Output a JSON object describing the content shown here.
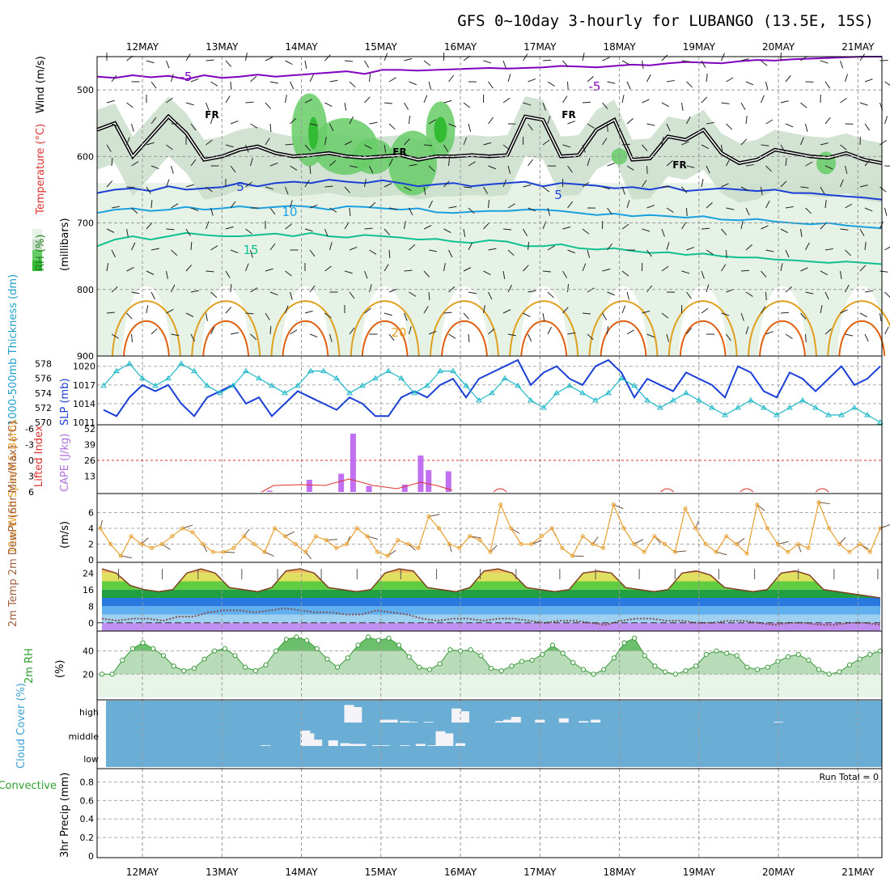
{
  "title": "GFS 0~10day 3-hourly for LUBANGO (13.5E, 15S)",
  "date_labels": [
    "12MAY",
    "13MAY",
    "14MAY",
    "15MAY",
    "16MAY",
    "17MAY",
    "18MAY",
    "19MAY",
    "20MAY",
    "21MAY"
  ],
  "colors": {
    "temp_purple": "#8000c0",
    "temp_blue": "#1a3fd6",
    "temp_lightblue": "#1aa0e0",
    "temp_teal": "#10c090",
    "temp_orange": "#e0a020",
    "temp_darkorange": "#e06010",
    "freezing": "#000000",
    "rh_light": "#e6f2e6",
    "rh_mid": "#c8dcc8",
    "rh_green": "#66cc66",
    "rh_bright": "#33bb33",
    "slp": "#1a3fd6",
    "thickness": "#20b8c8",
    "lifted": "#e03030",
    "cape": "#c070f0",
    "wind10": "#e8a030",
    "cloud_bg": "#6aaed6",
    "rh2m": "#7ac87a"
  },
  "panels": {
    "upper": {
      "ylabel_rh": "RH (%)",
      "ylabel_temp": "Temperature (°C)",
      "ylabel_wind": "Wind (m/s)",
      "ylabel_units": "(millibars)",
      "contour_labels": [
        "-5",
        "-5",
        "5",
        "5",
        "10",
        "15",
        "20",
        "FR",
        "FR",
        "FR",
        "FR"
      ]
    },
    "slp": {
      "ylabel_left": "1000-500mb Thickness (dm)",
      "ylabel_right": "SLP (mb)"
    },
    "cape": {
      "ylabel_left": "Lifted Index",
      "ylabel_right": "CAPE (J/kg)"
    },
    "wind10": {
      "ylabel": "10m Wind Speed & Barbs",
      "ylabel_units": "(m/s)"
    },
    "temp2m": {
      "ylabel": "2m Temp 2m DewPt (6hr Min/Max) (°C)"
    },
    "rh2m": {
      "ylabel": "2m RH",
      "ylabel_units": "(%)"
    },
    "cloud": {
      "ylabel": "Cloud Cover (%)",
      "levels": [
        "high",
        "middle",
        "low"
      ]
    },
    "precip": {
      "ylabel_left": "Total / Rain Convective",
      "ylabel_units": "3hr Precip (mm)",
      "run_total": "Run Total = 0"
    }
  },
  "chart_data": [
    {
      "type": "line",
      "title": "GFS 0~10day 3-hourly for LUBANGO (13.5E, 15S)",
      "ylabel": "Wind (m/s) / Temperature (°C) / RH (%) (millibars)",
      "yticks": [
        500,
        600,
        700,
        800,
        900
      ],
      "ylim": [
        450,
        900
      ],
      "inverted_y": true,
      "series": [
        {
          "name": "-5",
          "values": [
            480,
            482,
            478,
            481,
            479,
            484,
            478,
            482,
            480,
            477,
            480,
            478,
            476,
            474,
            472,
            476,
            470,
            470,
            471,
            470,
            469,
            468,
            467,
            468,
            467,
            466,
            464,
            465,
            466,
            464,
            462,
            463,
            460,
            458,
            459,
            460,
            457,
            455,
            456,
            454,
            453,
            452,
            451,
            450,
            450
          ]
        },
        {
          "name": "FR",
          "values": [
            560,
            550,
            600,
            570,
            540,
            565,
            605,
            600,
            590,
            585,
            595,
            600,
            598,
            595,
            600,
            602,
            600,
            598,
            605,
            600,
            600,
            598,
            600,
            598,
            540,
            545,
            600,
            598,
            560,
            545,
            605,
            603,
            570,
            575,
            560,
            595,
            610,
            605,
            590,
            595,
            600,
            602,
            595,
            605,
            610
          ]
        },
        {
          "name": "5",
          "values": [
            655,
            650,
            648,
            652,
            645,
            650,
            648,
            646,
            640,
            645,
            640,
            638,
            640,
            635,
            638,
            640,
            636,
            640,
            645,
            642,
            640,
            645,
            642,
            640,
            638,
            645,
            640,
            642,
            644,
            648,
            646,
            650,
            645,
            652,
            650,
            648,
            650,
            652,
            650,
            655,
            655,
            658,
            660,
            662,
            665
          ]
        },
        {
          "name": "10",
          "values": [
            685,
            680,
            678,
            682,
            680,
            676,
            680,
            678,
            675,
            678,
            676,
            674,
            676,
            680,
            675,
            676,
            678,
            680,
            678,
            684,
            685,
            683,
            682,
            682,
            680,
            680,
            682,
            685,
            688,
            686,
            690,
            688,
            690,
            692,
            690,
            695,
            696,
            694,
            698,
            700,
            702,
            700,
            704,
            706,
            708
          ]
        },
        {
          "name": "15",
          "values": [
            735,
            725,
            720,
            725,
            720,
            715,
            718,
            720,
            720,
            718,
            716,
            720,
            715,
            720,
            722,
            718,
            720,
            722,
            725,
            724,
            728,
            730,
            726,
            728,
            735,
            735,
            732,
            738,
            740,
            738,
            742,
            745,
            744,
            748,
            746,
            750,
            752,
            752,
            755,
            756,
            758,
            760,
            758,
            760,
            762
          ]
        }
      ]
    },
    {
      "type": "line",
      "ylabel": "1000-500mb Thickness (dm) / SLP (mb)",
      "yticks_left": [
        570,
        572,
        574,
        576,
        578
      ],
      "yticks_right": [
        1011,
        1014,
        1017,
        1020
      ],
      "series": [
        {
          "name": "SLP (mb)",
          "axis": "right",
          "values": [
            1013,
            1012,
            1015,
            1017,
            1016,
            1017,
            1014,
            1012,
            1015,
            1016,
            1017,
            1014,
            1015,
            1012,
            1014,
            1016,
            1015,
            1014,
            1013,
            1015,
            1014,
            1012,
            1012,
            1015,
            1016,
            1015,
            1017,
            1018,
            1015,
            1018,
            1019,
            1020,
            1021,
            1017,
            1019,
            1020,
            1018,
            1017,
            1020,
            1021,
            1019,
            1015,
            1018,
            1017,
            1016,
            1019,
            1018,
            1017,
            1015,
            1020,
            1019,
            1016,
            1015,
            1019,
            1018,
            1016,
            1018,
            1020,
            1017,
            1018,
            1020
          ]
        },
        {
          "name": "1000-500mb Thickness (dm)",
          "axis": "left",
          "values": [
            575,
            577,
            578,
            576,
            575,
            576,
            578,
            577,
            575,
            574,
            575,
            577,
            576,
            575,
            574,
            575,
            577,
            577,
            576,
            574,
            575,
            576,
            577,
            576,
            574,
            575,
            577,
            577,
            575,
            573,
            574,
            576,
            575,
            573,
            572,
            574,
            575,
            574,
            573,
            574,
            576,
            575,
            573,
            572,
            573,
            574,
            573,
            572,
            571,
            572,
            573,
            572,
            571,
            572,
            573,
            572,
            571,
            571,
            572,
            571,
            570
          ]
        }
      ]
    },
    {
      "type": "bar",
      "ylabel": "Lifted Index / CAPE (J/kg)",
      "yticks_right": [
        13,
        26,
        39,
        52
      ],
      "yticks_left": [
        6,
        3,
        0,
        -3,
        -6
      ],
      "series": [
        {
          "name": "CAPE (J/kg)",
          "x": [
            13.6,
            14.1,
            14.5,
            14.65,
            14.85,
            15.3,
            15.5,
            15.6,
            15.85
          ],
          "values": [
            1,
            10,
            15,
            48,
            5,
            6,
            30,
            18,
            17
          ]
        }
      ]
    },
    {
      "type": "line",
      "ylabel": "10m Wind Speed & Barbs (m/s)",
      "yticks": [
        0,
        2,
        4,
        6
      ],
      "ylim": [
        0,
        8
      ],
      "series": [
        {
          "name": "10m Wind Speed",
          "values": [
            4,
            2,
            0.5,
            3,
            2,
            1.5,
            2,
            3,
            4,
            3.5,
            2,
            1,
            1,
            1.5,
            3,
            2,
            1,
            4,
            3,
            2,
            1,
            3,
            2.5,
            1.5,
            2,
            4,
            3,
            1,
            0.5,
            2.5,
            2,
            1.5,
            5.5,
            4,
            2,
            1.5,
            3,
            2.5,
            1,
            7,
            4,
            2,
            2,
            3,
            4,
            1.5,
            0.5,
            3,
            2,
            1.5,
            7,
            4,
            2,
            1,
            3,
            2,
            1,
            6.5,
            4,
            2,
            1,
            3,
            2,
            0.8,
            7,
            4,
            2,
            1,
            2,
            1.5,
            7.3,
            4,
            2,
            1,
            2,
            1,
            4
          ]
        }
      ]
    },
    {
      "type": "area",
      "ylabel": "2m Temp 2m DewPt (6hr Min/Max) (°C)",
      "yticks": [
        0,
        8,
        16,
        24
      ],
      "ylim": [
        -4,
        28
      ],
      "series": [
        {
          "name": "2m Temp",
          "values": [
            26,
            24,
            18,
            16,
            15,
            16,
            24,
            26,
            24,
            17,
            16,
            15,
            17,
            25,
            26,
            24,
            17,
            16,
            15,
            16,
            24,
            26,
            25,
            17,
            16,
            15,
            17,
            25,
            26,
            24,
            17,
            16,
            15,
            16,
            24,
            25,
            24,
            17,
            16,
            15,
            16,
            24,
            25,
            23,
            17,
            16,
            15,
            16,
            24,
            25,
            23,
            16,
            15,
            14,
            13,
            12
          ]
        },
        {
          "name": "2m DewPt",
          "values": [
            2,
            1,
            2,
            2,
            1,
            3,
            3,
            5,
            6,
            6,
            5,
            6,
            7,
            6,
            5,
            5,
            4,
            4,
            6,
            5,
            4,
            2,
            1,
            2,
            2,
            1,
            2,
            2,
            1,
            0,
            1,
            1,
            0,
            -1,
            1,
            2,
            2,
            1,
            1,
            0,
            0,
            1,
            1,
            0,
            -1,
            0,
            0,
            -1,
            -1,
            0,
            0,
            -1
          ]
        }
      ]
    },
    {
      "type": "area",
      "ylabel": "2m RH (%)",
      "yticks": [
        20,
        40
      ],
      "ylim": [
        0,
        55
      ],
      "series": [
        {
          "name": "2m RH",
          "values": [
            20,
            20,
            32,
            42,
            47,
            42,
            36,
            27,
            23,
            25,
            33,
            40,
            42,
            36,
            26,
            23,
            28,
            40,
            50,
            52,
            49,
            42,
            33,
            26,
            34,
            45,
            52,
            49,
            51,
            45,
            35,
            26,
            24,
            29,
            41,
            40,
            41,
            36,
            25,
            23,
            27,
            31,
            32,
            37,
            45,
            38,
            30,
            24,
            20,
            24,
            34,
            47,
            51,
            36,
            27,
            22,
            20,
            23,
            27,
            37,
            40,
            38,
            36,
            26,
            24,
            26,
            31,
            35,
            37,
            32,
            24,
            20,
            22,
            28,
            33,
            37,
            40
          ]
        }
      ]
    },
    {
      "type": "bar",
      "ylabel": "Cloud Cover (%)",
      "categories": [
        "high",
        "middle",
        "low"
      ],
      "series": [
        {
          "name": "high",
          "x": [
            14.6,
            14.7,
            15.05,
            15.15,
            15.3,
            15.4,
            15.6,
            15.95,
            16.05,
            16.5,
            16.6,
            16.7,
            17.0,
            17.3,
            17.55,
            17.7,
            20.0
          ],
          "values": [
            25,
            22,
            4,
            4,
            2,
            1,
            1,
            20,
            16,
            2,
            4,
            8,
            4,
            6,
            2,
            4,
            1
          ]
        },
        {
          "name": "middle",
          "x": [
            13.55,
            14.05,
            14.1,
            14.2,
            14.4,
            14.55,
            14.65,
            14.75,
            14.95,
            15.05,
            15.3,
            15.5,
            15.65,
            15.75,
            15.85,
            16.0
          ],
          "values": [
            1,
            22,
            18,
            9,
            8,
            4,
            3,
            3,
            1,
            1,
            1,
            3,
            1,
            21,
            18,
            4
          ]
        }
      ]
    },
    {
      "type": "bar",
      "ylabel": "3hr Precip (mm)",
      "yticks": [
        0,
        0.2,
        0.4,
        0.6,
        0.8
      ],
      "ylim": [
        0,
        0.9
      ],
      "series": [
        {
          "name": "Total / Rain",
          "values": []
        },
        {
          "name": "Convective",
          "values": []
        }
      ]
    }
  ]
}
